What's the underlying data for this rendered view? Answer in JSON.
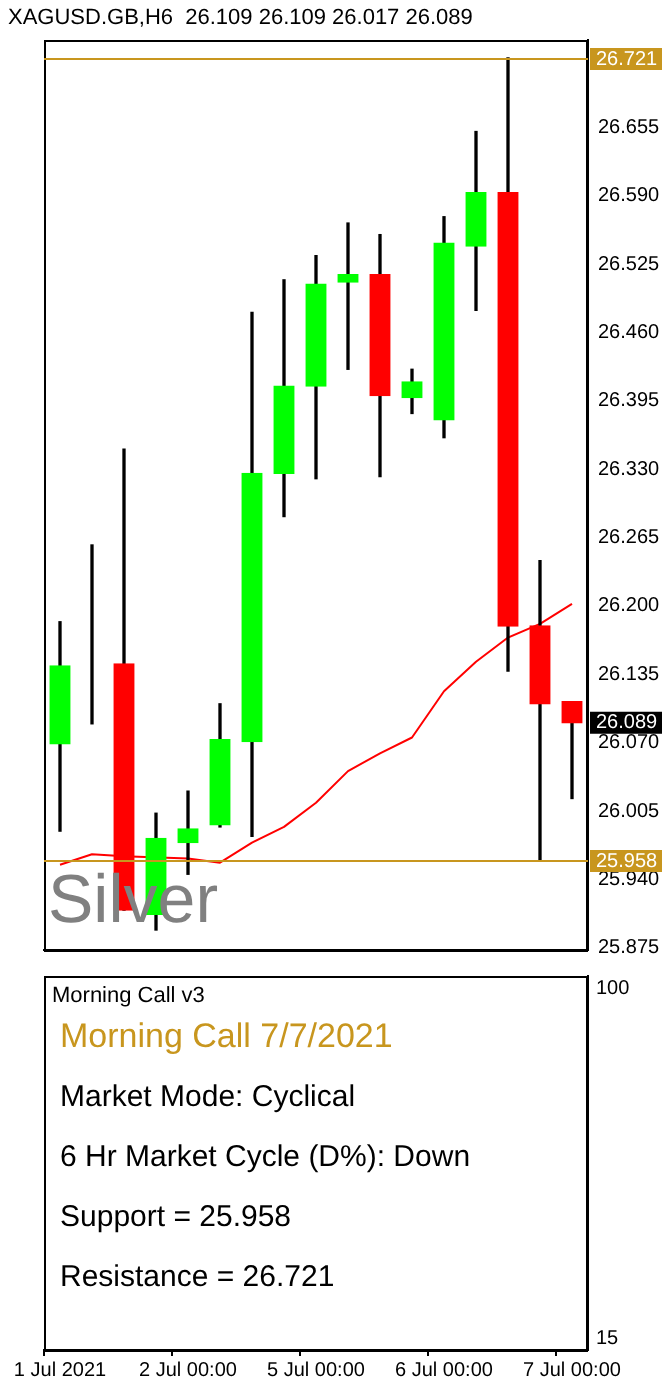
{
  "chart_data": [
    {
      "type": "candlestick",
      "title": "XAGUSD.GB,H6  26.109 26.109 26.017 26.089",
      "categories": [
        null,
        null,
        null,
        null,
        null,
        null,
        null,
        null,
        null,
        null,
        null,
        null,
        null,
        null,
        null,
        null,
        null
      ],
      "ohlc": [
        [
          26.069,
          26.185,
          25.986,
          26.143
        ],
        [
          26.147,
          26.258,
          26.088,
          26.147
        ],
        [
          26.145,
          26.349,
          25.911,
          25.911
        ],
        [
          25.907,
          26.003,
          25.892,
          25.979
        ],
        [
          25.975,
          26.024,
          25.945,
          25.988
        ],
        [
          25.992,
          26.107,
          25.99,
          26.073
        ],
        [
          26.071,
          26.479,
          25.981,
          26.326
        ],
        [
          26.326,
          26.51,
          26.285,
          26.409
        ],
        [
          26.409,
          26.533,
          26.321,
          26.506
        ],
        [
          26.508,
          26.564,
          26.425,
          26.515
        ],
        [
          26.515,
          26.553,
          26.323,
          26.4
        ],
        [
          26.398,
          26.425,
          26.383,
          26.413
        ],
        [
          26.377,
          26.57,
          26.36,
          26.545
        ],
        [
          26.542,
          26.651,
          26.481,
          26.593
        ],
        [
          26.593,
          26.721,
          26.138,
          26.181
        ],
        [
          26.181,
          26.243,
          25.958,
          26.107
        ],
        [
          26.109,
          26.109,
          26.017,
          26.089
        ]
      ],
      "colors": [
        "#00ff00",
        "#00ff00",
        "#ff0000",
        "#00ff00",
        "#00ff00",
        "#00ff00",
        "#00ff00",
        "#00ff00",
        "#00ff00",
        "#00ff00",
        "#ff0000",
        "#00ff00",
        "#00ff00",
        "#00ff00",
        "#ff0000",
        "#ff0000",
        "#ff0000"
      ],
      "series": [
        {
          "type": "line",
          "color": "#ff0000",
          "values": [
            25.954,
            25.964,
            25.962,
            null,
            25.96,
            25.956,
            25.975,
            25.99,
            26.013,
            26.043,
            26.06,
            26.075,
            26.119,
            26.147,
            26.17,
            26.183,
            26.202
          ]
        }
      ],
      "ylim": [
        25.873,
        26.738
      ],
      "yticks": [
        26.655,
        {
          "value": 26.59,
          "label": "26.590"
        },
        26.525,
        {
          "value": 26.46,
          "label": "26.460"
        },
        26.395,
        {
          "value": 26.33,
          "label": "26.330"
        },
        26.265,
        {
          "value": 26.2,
          "label": "26.200"
        },
        26.135,
        {
          "value": 26.07,
          "label": "26.070"
        },
        26.005,
        {
          "value": 25.94,
          "label": "25.940"
        },
        25.875
      ],
      "ref_lines": [
        {
          "axis": "y",
          "value": 26.721,
          "label": "26.721",
          "color": "#c8961e"
        },
        {
          "axis": "y",
          "value": 25.958,
          "label": "25.958",
          "color": "#c8961e"
        }
      ],
      "annotations": [
        "Silver",
        {
          "text": "26.089",
          "y": 26.089
        }
      ],
      "tick_labels": "y",
      "grid": false,
      "legend": false
    },
    {
      "type": "other",
      "title": "Morning Call v3",
      "categories": [
        "1 Jul 2021",
        null,
        null,
        null,
        "2 Jul 00:00",
        null,
        null,
        null,
        "5 Jul 00:00",
        null,
        null,
        null,
        "6 Jul 00:00",
        null,
        null,
        null,
        "7 Jul 00:00"
      ],
      "annotations": [
        "Morning Call 7/7/2021",
        "Market Mode: Cyclical",
        "6 Hr Market Cycle (D%): Down",
        "Support = 25.958",
        "Resistance = 26.721",
        "100",
        "15"
      ]
    }
  ]
}
